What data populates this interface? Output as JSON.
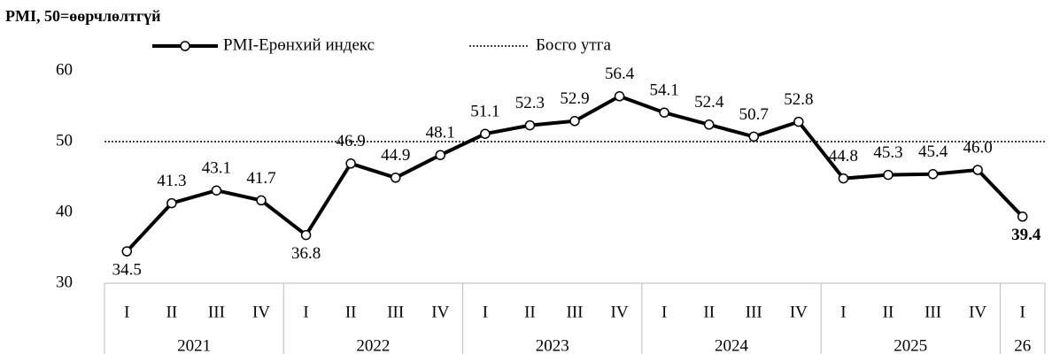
{
  "chart_data": {
    "type": "line",
    "title": "PMI, 50=өөрчлөлтгүй",
    "categories": [
      "I",
      "II",
      "III",
      "IV",
      "I",
      "II",
      "III",
      "IV",
      "I",
      "II",
      "III",
      "IV",
      "I",
      "II",
      "III",
      "IV",
      "I",
      "II",
      "III",
      "IV",
      "I"
    ],
    "years": [
      "2021",
      "2021",
      "2021",
      "2021",
      "2022",
      "2022",
      "2022",
      "2022",
      "2023",
      "2023",
      "2023",
      "2023",
      "2024",
      "2024",
      "2024",
      "2024",
      "2025",
      "2025",
      "2025",
      "2025",
      "26"
    ],
    "series": [
      {
        "name": "PMI-Ерөнхий индекс",
        "color": "#000000",
        "values": [
          34.5,
          41.3,
          43.1,
          41.7,
          36.8,
          46.9,
          44.9,
          48.1,
          51.1,
          52.3,
          52.9,
          56.4,
          54.1,
          52.4,
          50.7,
          52.8,
          44.8,
          45.3,
          45.4,
          46.0,
          39.4
        ],
        "value_labels": [
          "34.5",
          "41.3",
          "43.1",
          "41.7",
          "36.8",
          "46.9",
          "44.9",
          "48.1",
          "51.1",
          "52.3",
          "52.9",
          "56.4",
          "54.1",
          "52.4",
          "50.7",
          "52.8",
          "44.8",
          "45.3",
          "45.4",
          "46.0",
          "39.4"
        ]
      }
    ],
    "reference": {
      "name": "Босго утга",
      "value": 50,
      "color": "#000000"
    },
    "ylim": [
      30,
      60
    ],
    "yticks": [
      30,
      40,
      50,
      60
    ],
    "grid": false
  }
}
